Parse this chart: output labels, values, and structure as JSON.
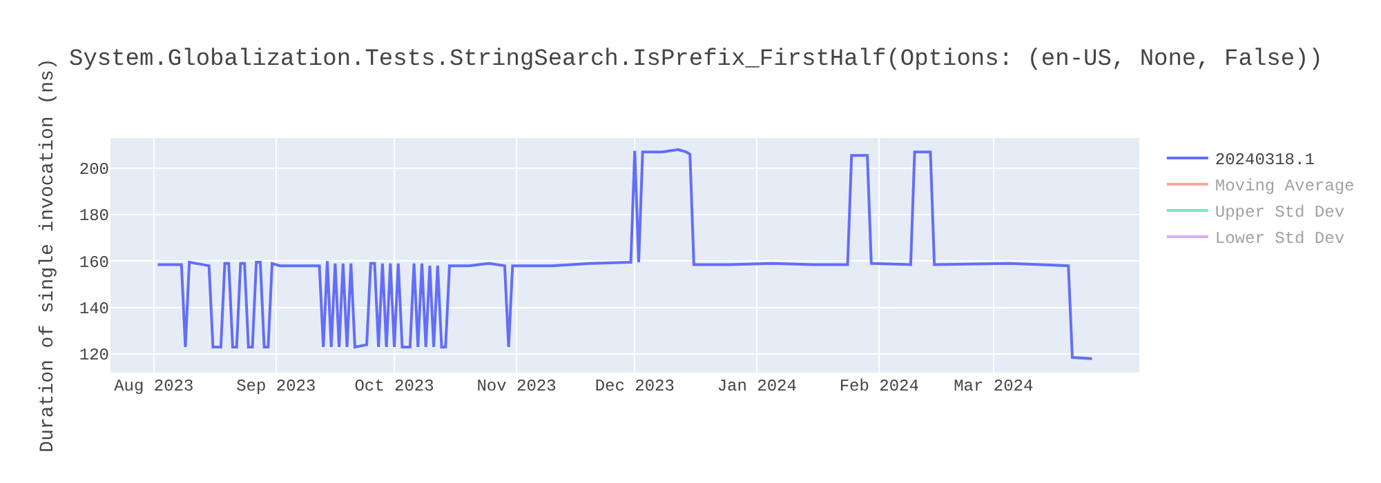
{
  "chart_data": {
    "type": "line",
    "title": "System.Globalization.Tests.StringSearch.IsPrefix_FirstHalf(Options: (en-US, None, False))",
    "ylabel": "Duration of single invocation (ns)",
    "x": [
      "2023-08-02",
      "2023-08-08",
      "2023-08-09",
      "2023-08-10",
      "2023-08-15",
      "2023-08-16",
      "2023-08-18",
      "2023-08-19",
      "2023-08-20",
      "2023-08-21",
      "2023-08-22",
      "2023-08-23",
      "2023-08-24",
      "2023-08-25",
      "2023-08-26",
      "2023-08-27",
      "2023-08-28",
      "2023-08-29",
      "2023-08-30",
      "2023-08-31",
      "2023-09-02",
      "2023-09-12",
      "2023-09-13",
      "2023-09-14",
      "2023-09-15",
      "2023-09-16",
      "2023-09-17",
      "2023-09-18",
      "2023-09-19",
      "2023-09-20",
      "2023-09-21",
      "2023-09-24",
      "2023-09-25",
      "2023-09-26",
      "2023-09-27",
      "2023-09-28",
      "2023-09-29",
      "2023-09-30",
      "2023-10-01",
      "2023-10-02",
      "2023-10-03",
      "2023-10-05",
      "2023-10-06",
      "2023-10-07",
      "2023-10-08",
      "2023-10-09",
      "2023-10-10",
      "2023-10-11",
      "2023-10-12",
      "2023-10-13",
      "2023-10-14",
      "2023-10-15",
      "2023-10-20",
      "2023-10-25",
      "2023-10-29",
      "2023-10-30",
      "2023-10-31",
      "2023-11-10",
      "2023-11-20",
      "2023-11-30",
      "2023-12-01",
      "2023-12-02",
      "2023-12-03",
      "2023-12-08",
      "2023-12-12",
      "2023-12-14",
      "2023-12-15",
      "2023-12-16",
      "2023-12-25",
      "2024-01-05",
      "2024-01-15",
      "2024-01-24",
      "2024-01-25",
      "2024-01-29",
      "2024-01-30",
      "2024-02-09",
      "2024-02-10",
      "2024-02-14",
      "2024-02-15",
      "2024-03-05",
      "2024-03-20",
      "2024-03-21",
      "2024-03-26"
    ],
    "series": [
      {
        "name": "20240318.1",
        "color": "#636efa",
        "values": [
          158.5,
          158.5,
          123,
          159.5,
          158,
          123,
          123,
          159,
          159,
          123,
          123,
          159,
          159,
          123,
          123,
          159.5,
          159.5,
          123,
          123,
          159,
          158,
          158,
          123,
          160,
          123,
          159,
          123,
          159,
          123,
          159,
          123,
          124,
          159,
          159,
          123,
          159,
          123,
          159,
          123,
          159,
          123,
          123,
          159,
          123,
          159,
          123,
          158,
          123,
          158,
          123,
          123,
          158,
          158,
          159,
          158,
          123,
          158,
          158,
          159,
          159.5,
          207.5,
          159.5,
          207,
          207,
          208,
          207,
          206,
          158.5,
          158.5,
          159,
          158.5,
          158.5,
          205.5,
          205.5,
          159,
          158.5,
          207,
          207,
          158.5,
          159,
          158,
          118.5,
          118
        ]
      },
      {
        "name": "Moving Average",
        "color": "#ef553b",
        "values": [
          null,
          null,
          null,
          null,
          null,
          null,
          null,
          null,
          null,
          null,
          null,
          null,
          null,
          null,
          null,
          null,
          null,
          null,
          null,
          null,
          null,
          null,
          null,
          null,
          null,
          null,
          null,
          null,
          null,
          null,
          null,
          null,
          null,
          null,
          null,
          null,
          null,
          null,
          null,
          null,
          null,
          null,
          null,
          null,
          null,
          null,
          null,
          null,
          null,
          null,
          null,
          null,
          null,
          null,
          null,
          null,
          null,
          null,
          null,
          null,
          null,
          null,
          null,
          null,
          null,
          null,
          null,
          null,
          null,
          null,
          null,
          null,
          null,
          null,
          null,
          null,
          null,
          null,
          null,
          null,
          null,
          null,
          null
        ]
      },
      {
        "name": "Upper Std Dev",
        "color": "#00cc96",
        "values": [
          null,
          null,
          null,
          null,
          null,
          null,
          null,
          null,
          null,
          null,
          null,
          null,
          null,
          null,
          null,
          null,
          null,
          null,
          null,
          null,
          null,
          null,
          null,
          null,
          null,
          null,
          null,
          null,
          null,
          null,
          null,
          null,
          null,
          null,
          null,
          null,
          null,
          null,
          null,
          null,
          null,
          null,
          null,
          null,
          null,
          null,
          null,
          null,
          null,
          null,
          null,
          null,
          null,
          null,
          null,
          null,
          null,
          null,
          null,
          null,
          null,
          null,
          null,
          null,
          null,
          null,
          null,
          null,
          null,
          null,
          null,
          null,
          null,
          null,
          null,
          null,
          null,
          null,
          null,
          null,
          null,
          null,
          null
        ]
      },
      {
        "name": "Lower Std Dev",
        "color": "#ab63fa",
        "values": [
          null,
          null,
          null,
          null,
          null,
          null,
          null,
          null,
          null,
          null,
          null,
          null,
          null,
          null,
          null,
          null,
          null,
          null,
          null,
          null,
          null,
          null,
          null,
          null,
          null,
          null,
          null,
          null,
          null,
          null,
          null,
          null,
          null,
          null,
          null,
          null,
          null,
          null,
          null,
          null,
          null,
          null,
          null,
          null,
          null,
          null,
          null,
          null,
          null,
          null,
          null,
          null,
          null,
          null,
          null,
          null,
          null,
          null,
          null,
          null,
          null,
          null,
          null,
          null,
          null,
          null,
          null,
          null,
          null,
          null,
          null,
          null,
          null,
          null,
          null,
          null,
          null,
          null,
          null,
          null,
          null,
          null,
          null
        ]
      }
    ],
    "xlim": [
      "2023-07-21",
      "2024-04-07"
    ],
    "xticks": [
      {
        "value": "2023-08-01",
        "label": "Aug 2023"
      },
      {
        "value": "2023-09-01",
        "label": "Sep 2023"
      },
      {
        "value": "2023-10-01",
        "label": "Oct 2023"
      },
      {
        "value": "2023-11-01",
        "label": "Nov 2023"
      },
      {
        "value": "2023-12-01",
        "label": "Dec 2023"
      },
      {
        "value": "2024-01-01",
        "label": "Jan 2024"
      },
      {
        "value": "2024-02-01",
        "label": "Feb 2024"
      },
      {
        "value": "2024-03-01",
        "label": "Mar 2024"
      }
    ],
    "ylim": [
      112,
      213
    ],
    "yticks": [
      120,
      140,
      160,
      180,
      200
    ],
    "grid": true,
    "legend": "top right",
    "marker": "none",
    "line_style": "solid"
  }
}
